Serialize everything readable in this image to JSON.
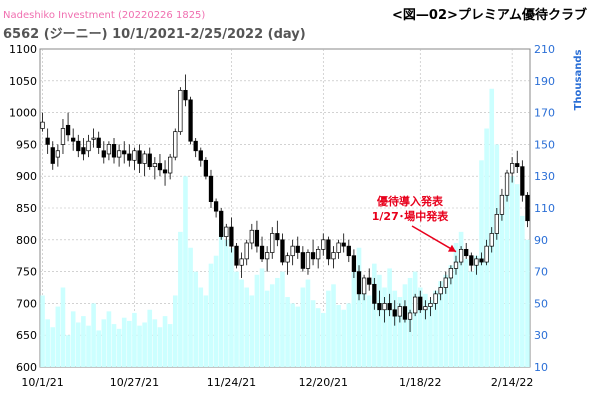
{
  "header": {
    "watermark": "Nadeshiko Investment (20220226 1825)",
    "title": "6562 (ジーニー) 10/1/2021-2/25/2022 (day)",
    "tag": "<図—02>プレミアム優待クラブ"
  },
  "colors": {
    "up": "#ffffff",
    "down": "#000000",
    "volume": "#ccffff",
    "grid": "#b8b8b8",
    "annotation": "#e8001c",
    "right_axis": "#2b6fd6"
  },
  "chart_data": {
    "type": "candlestick",
    "title": "6562 (ジーニー) 10/1/2021-2/25/2022 (day)",
    "x_tick_labels": [
      "10/1/21",
      "10/27/21",
      "11/24/21",
      "12/20/21",
      "1/18/22",
      "2/14/22"
    ],
    "x_tick_index": [
      0,
      18,
      37,
      55,
      74,
      92
    ],
    "y_left": {
      "min": 600,
      "max": 1100,
      "step": 50,
      "label": ""
    },
    "y_right": {
      "min": 10,
      "max": 210,
      "step": 20,
      "label": "Thousands"
    },
    "grid": true,
    "annotation": {
      "lines": [
        "優待導入発表",
        "1/27･場中発表"
      ],
      "target_index": 81
    },
    "ohlc": [
      [
        975,
        1000,
        970,
        985
      ],
      [
        960,
        975,
        935,
        950
      ],
      [
        945,
        955,
        910,
        920
      ],
      [
        930,
        950,
        915,
        940
      ],
      [
        950,
        990,
        935,
        975
      ],
      [
        980,
        1000,
        955,
        965
      ],
      [
        960,
        975,
        940,
        955
      ],
      [
        955,
        965,
        930,
        940
      ],
      [
        945,
        960,
        925,
        935
      ],
      [
        940,
        965,
        930,
        955
      ],
      [
        958,
        975,
        945,
        960
      ],
      [
        960,
        970,
        935,
        945
      ],
      [
        940,
        955,
        920,
        930
      ],
      [
        935,
        955,
        925,
        950
      ],
      [
        950,
        960,
        920,
        930
      ],
      [
        930,
        950,
        915,
        940
      ],
      [
        940,
        955,
        920,
        935
      ],
      [
        935,
        950,
        915,
        925
      ],
      [
        925,
        945,
        910,
        940
      ],
      [
        940,
        950,
        905,
        920
      ],
      [
        920,
        940,
        900,
        935
      ],
      [
        935,
        945,
        910,
        915
      ],
      [
        915,
        930,
        895,
        920
      ],
      [
        920,
        935,
        900,
        910
      ],
      [
        910,
        925,
        885,
        905
      ],
      [
        905,
        935,
        895,
        930
      ],
      [
        930,
        975,
        925,
        970
      ],
      [
        970,
        1040,
        965,
        1035
      ],
      [
        1035,
        1060,
        1010,
        1020
      ],
      [
        1020,
        1025,
        950,
        955
      ],
      [
        955,
        960,
        930,
        940
      ],
      [
        940,
        945,
        915,
        925
      ],
      [
        925,
        930,
        895,
        900
      ],
      [
        900,
        910,
        850,
        860
      ],
      [
        860,
        865,
        835,
        845
      ],
      [
        845,
        850,
        800,
        805
      ],
      [
        805,
        825,
        790,
        820
      ],
      [
        820,
        835,
        780,
        790
      ],
      [
        790,
        795,
        755,
        760
      ],
      [
        760,
        780,
        740,
        770
      ],
      [
        770,
        800,
        760,
        795
      ],
      [
        795,
        825,
        785,
        815
      ],
      [
        815,
        830,
        780,
        790
      ],
      [
        790,
        805,
        765,
        770
      ],
      [
        770,
        790,
        750,
        780
      ],
      [
        780,
        820,
        770,
        810
      ],
      [
        810,
        830,
        790,
        800
      ],
      [
        800,
        810,
        760,
        765
      ],
      [
        765,
        780,
        745,
        775
      ],
      [
        775,
        800,
        760,
        790
      ],
      [
        790,
        805,
        770,
        780
      ],
      [
        780,
        790,
        750,
        755
      ],
      [
        755,
        785,
        745,
        780
      ],
      [
        780,
        800,
        760,
        770
      ],
      [
        770,
        790,
        755,
        785
      ],
      [
        785,
        810,
        775,
        800
      ],
      [
        800,
        805,
        760,
        770
      ],
      [
        770,
        790,
        755,
        780
      ],
      [
        780,
        800,
        770,
        795
      ],
      [
        795,
        810,
        780,
        790
      ],
      [
        790,
        800,
        765,
        775
      ],
      [
        775,
        785,
        740,
        750
      ],
      [
        750,
        760,
        705,
        715
      ],
      [
        715,
        745,
        705,
        740
      ],
      [
        740,
        755,
        720,
        730
      ],
      [
        730,
        740,
        690,
        700
      ],
      [
        700,
        720,
        680,
        690
      ],
      [
        690,
        710,
        670,
        700
      ],
      [
        700,
        715,
        680,
        690
      ],
      [
        690,
        705,
        665,
        680
      ],
      [
        680,
        700,
        670,
        695
      ],
      [
        695,
        705,
        670,
        675
      ],
      [
        675,
        690,
        655,
        685
      ],
      [
        685,
        715,
        680,
        710
      ],
      [
        710,
        720,
        685,
        690
      ],
      [
        690,
        705,
        675,
        695
      ],
      [
        695,
        710,
        680,
        700
      ],
      [
        700,
        720,
        690,
        715
      ],
      [
        715,
        735,
        705,
        725
      ],
      [
        725,
        750,
        715,
        740
      ],
      [
        740,
        760,
        730,
        755
      ],
      [
        755,
        775,
        745,
        765
      ],
      [
        765,
        790,
        760,
        785
      ],
      [
        785,
        795,
        770,
        775
      ],
      [
        775,
        780,
        750,
        760
      ],
      [
        760,
        775,
        745,
        770
      ],
      [
        770,
        780,
        760,
        765
      ],
      [
        765,
        800,
        760,
        790
      ],
      [
        790,
        820,
        780,
        810
      ],
      [
        810,
        850,
        800,
        840
      ],
      [
        840,
        880,
        830,
        870
      ],
      [
        870,
        910,
        860,
        905
      ],
      [
        905,
        930,
        890,
        920
      ],
      [
        920,
        940,
        905,
        915
      ],
      [
        915,
        925,
        860,
        870
      ],
      [
        870,
        875,
        820,
        830
      ]
    ],
    "volume": [
      55,
      40,
      35,
      48,
      60,
      30,
      45,
      38,
      42,
      36,
      50,
      33,
      40,
      45,
      37,
      34,
      41,
      39,
      44,
      36,
      38,
      46,
      40,
      35,
      42,
      37,
      55,
      95,
      130,
      85,
      70,
      60,
      55,
      75,
      80,
      100,
      90,
      85,
      70,
      65,
      60,
      55,
      68,
      72,
      58,
      62,
      66,
      70,
      54,
      50,
      48,
      60,
      65,
      52,
      47,
      44,
      58,
      62,
      49,
      46,
      50,
      70,
      85,
      60,
      55,
      75,
      68,
      60,
      72,
      58,
      54,
      62,
      66,
      70,
      60,
      56,
      52,
      58,
      64,
      68,
      74,
      88,
      95,
      78,
      70,
      80,
      140,
      160,
      185,
      150,
      110,
      120,
      130,
      125,
      105,
      90
    ]
  }
}
